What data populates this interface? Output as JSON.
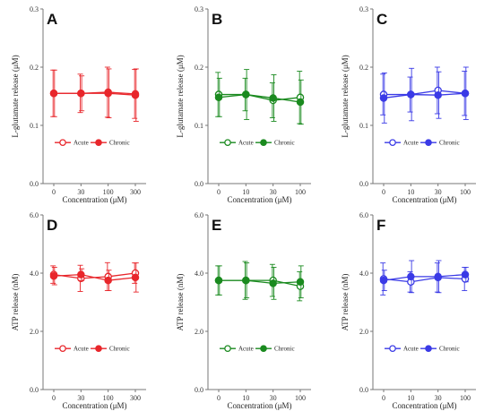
{
  "chart_data": [
    {
      "type": "line",
      "panel": "A",
      "color": "#e8262b",
      "categories": [
        "0",
        "30",
        "100",
        "300"
      ],
      "xlabel": "Concentration (μM)",
      "ylabel": "L-glutamate release (μM)",
      "ylim": [
        0,
        0.3
      ],
      "yticks": [
        "0.0",
        "0.1",
        "0.2",
        "0.3"
      ],
      "legend": "bottom-right",
      "series": [
        {
          "name": "Acute",
          "marker": "open",
          "values": [
            0.155,
            0.155,
            0.157,
            0.154
          ],
          "errors": [
            0.04,
            0.033,
            0.043,
            0.042
          ]
        },
        {
          "name": "Chronic",
          "marker": "filled",
          "values": [
            0.155,
            0.155,
            0.155,
            0.152
          ],
          "errors": [
            0.04,
            0.03,
            0.042,
            0.045
          ]
        }
      ]
    },
    {
      "type": "line",
      "panel": "B",
      "color": "#1a8a1f",
      "categories": [
        "0",
        "10",
        "30",
        "100"
      ],
      "xlabel": "Concentration (μM)",
      "ylabel": "L-glutamate release (μM)",
      "ylim": [
        0,
        0.3
      ],
      "yticks": [
        "0.0",
        "0.1",
        "0.2",
        "0.3"
      ],
      "legend": "bottom-right",
      "series": [
        {
          "name": "Acute",
          "marker": "open",
          "values": [
            0.153,
            0.153,
            0.143,
            0.148
          ],
          "errors": [
            0.038,
            0.028,
            0.03,
            0.045
          ]
        },
        {
          "name": "Chronic",
          "marker": "filled",
          "values": [
            0.148,
            0.153,
            0.147,
            0.14
          ],
          "errors": [
            0.033,
            0.043,
            0.04,
            0.038
          ]
        }
      ]
    },
    {
      "type": "line",
      "panel": "C",
      "color": "#3a3ae6",
      "categories": [
        "0",
        "10",
        "30",
        "100"
      ],
      "xlabel": "Concentration (μM)",
      "ylabel": "L-glutamate release (μM)",
      "ylim": [
        0,
        0.3
      ],
      "yticks": [
        "0.0",
        "0.1",
        "0.2",
        "0.3"
      ],
      "legend": "bottom-right",
      "series": [
        {
          "name": "Acute",
          "marker": "open",
          "values": [
            0.153,
            0.153,
            0.16,
            0.155
          ],
          "errors": [
            0.035,
            0.03,
            0.04,
            0.038
          ]
        },
        {
          "name": "Chronic",
          "marker": "filled",
          "values": [
            0.147,
            0.153,
            0.152,
            0.155
          ],
          "errors": [
            0.043,
            0.045,
            0.04,
            0.045
          ]
        }
      ]
    },
    {
      "type": "line",
      "panel": "D",
      "color": "#e8262b",
      "categories": [
        "0",
        "30",
        "100",
        "300"
      ],
      "xlabel": "Concentration (μM)",
      "ylabel": "ATP release (nM)",
      "ylim": [
        0,
        6
      ],
      "yticks": [
        "0.0",
        "2.0",
        "4.0",
        "6.0"
      ],
      "legend": "bottom-right",
      "series": [
        {
          "name": "Acute",
          "marker": "open",
          "values": [
            3.95,
            3.82,
            3.88,
            4.0
          ],
          "errors": [
            0.3,
            0.45,
            0.48,
            0.35
          ]
        },
        {
          "name": "Chronic",
          "marker": "filled",
          "values": [
            3.9,
            3.95,
            3.75,
            3.85
          ],
          "errors": [
            0.3,
            0.2,
            0.35,
            0.5
          ]
        }
      ]
    },
    {
      "type": "line",
      "panel": "E",
      "color": "#1a8a1f",
      "categories": [
        "0",
        "10",
        "30",
        "100"
      ],
      "xlabel": "Concentration (μM)",
      "ylabel": "ATP release (nM)",
      "ylim": [
        0,
        6
      ],
      "yticks": [
        "0.0",
        "2.0",
        "4.0",
        "6.0"
      ],
      "legend": "bottom-right",
      "series": [
        {
          "name": "Acute",
          "marker": "open",
          "values": [
            3.75,
            3.75,
            3.75,
            3.55
          ],
          "errors": [
            0.5,
            0.65,
            0.55,
            0.5
          ]
        },
        {
          "name": "Chronic",
          "marker": "filled",
          "values": [
            3.75,
            3.75,
            3.65,
            3.7
          ],
          "errors": [
            0.5,
            0.6,
            0.55,
            0.55
          ]
        }
      ]
    },
    {
      "type": "line",
      "panel": "F",
      "color": "#3a3ae6",
      "categories": [
        "0",
        "10",
        "30",
        "100"
      ],
      "xlabel": "Concentration (μM)",
      "ylabel": "ATP release (nM)",
      "ylim": [
        0,
        6
      ],
      "yticks": [
        "0.0",
        "2.0",
        "4.0",
        "6.0"
      ],
      "legend": "bottom-right",
      "series": [
        {
          "name": "Acute",
          "marker": "open",
          "values": [
            3.8,
            3.7,
            3.85,
            3.8
          ],
          "errors": [
            0.55,
            0.35,
            0.5,
            0.4
          ]
        },
        {
          "name": "Chronic",
          "marker": "filled",
          "values": [
            3.75,
            3.88,
            3.88,
            3.95
          ],
          "errors": [
            0.35,
            0.55,
            0.55,
            0.25
          ]
        }
      ]
    }
  ]
}
